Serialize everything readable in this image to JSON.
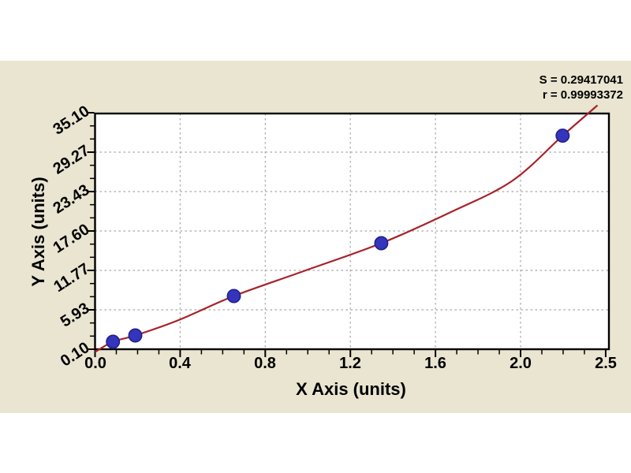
{
  "panel": {
    "background_color": "#e9e5d1"
  },
  "stats": {
    "s_label": "S = 0.29417041",
    "r_label": "r = 0.99993372"
  },
  "chart_data": {
    "type": "scatter",
    "title": "",
    "xlabel": "X Axis (units)",
    "ylabel": "Y Axis (units)",
    "x_range": [
      0.0,
      2.5
    ],
    "y_range": [
      0.1,
      35.1
    ],
    "x_tick_labels": [
      "0.0",
      "0.4",
      "0.8",
      "1.2",
      "1.6",
      "2.0",
      "2.5"
    ],
    "y_tick_labels": [
      "0.10",
      "5.93",
      "11.77",
      "17.60",
      "23.43",
      "29.27",
      "35.10"
    ],
    "grid": "dashed",
    "legend": "none",
    "points": {
      "x": [
        0.086,
        0.193,
        0.666,
        1.373,
        2.243
      ],
      "y": [
        1.21,
        2.14,
        7.97,
        15.79,
        31.71
      ]
    },
    "fit_curve": {
      "x": [
        0.0,
        0.086,
        0.193,
        0.4,
        0.666,
        1.0,
        1.373,
        1.7,
        2.0,
        2.243,
        2.41
      ],
      "y": [
        -0.3,
        1.21,
        2.14,
        4.4,
        7.97,
        11.65,
        15.79,
        20.3,
        25.0,
        31.71,
        36.2
      ]
    },
    "fit_stats": {
      "S": 0.29417041,
      "r": 0.99993372
    },
    "colors": {
      "curve": "#a8222a",
      "point": "#3434bc",
      "point_edge": "#1f1f8a",
      "grid": "#a8a8a8",
      "frame": "#000000",
      "panel": "#e9e5d1"
    }
  }
}
